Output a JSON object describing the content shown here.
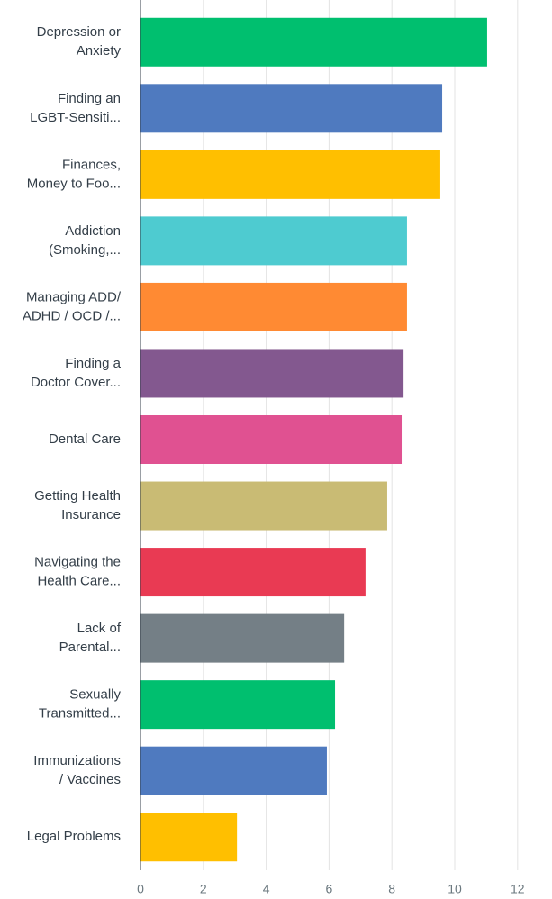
{
  "chart_data": {
    "type": "bar",
    "orientation": "horizontal",
    "categories": [
      [
        "Depression or",
        "Anxiety"
      ],
      [
        "Finding an",
        "LGBT-Sensiti..."
      ],
      [
        "Finances,",
        "Money to Foo..."
      ],
      [
        "Addiction",
        "(Smoking,..."
      ],
      [
        "Managing ADD/",
        "ADHD / OCD /..."
      ],
      [
        "Finding a",
        "Doctor Cover..."
      ],
      [
        "Dental Care"
      ],
      [
        "Getting Health",
        "Insurance"
      ],
      [
        "Navigating the",
        "Health Care..."
      ],
      [
        "Lack of",
        "Parental..."
      ],
      [
        "Sexually",
        "Transmitted..."
      ],
      [
        "Immunizations",
        "/ Vaccines"
      ],
      [
        "Legal Problems"
      ]
    ],
    "values": [
      11.03,
      9.6,
      9.54,
      8.48,
      8.48,
      8.37,
      8.31,
      7.85,
      7.16,
      6.48,
      6.19,
      5.93,
      3.07
    ],
    "colors": [
      "#00bf6f",
      "#4f7abf",
      "#ffbf00",
      "#4ecbd0",
      "#ff8a33",
      "#83588f",
      "#e05191",
      "#c9bb74",
      "#e93a53",
      "#747f86",
      "#00bf6f",
      "#4f7abf",
      "#ffbf00"
    ],
    "xlim": [
      0,
      13
    ],
    "xticks": [
      0,
      2,
      4,
      6,
      8,
      10,
      12
    ],
    "grid": true
  }
}
